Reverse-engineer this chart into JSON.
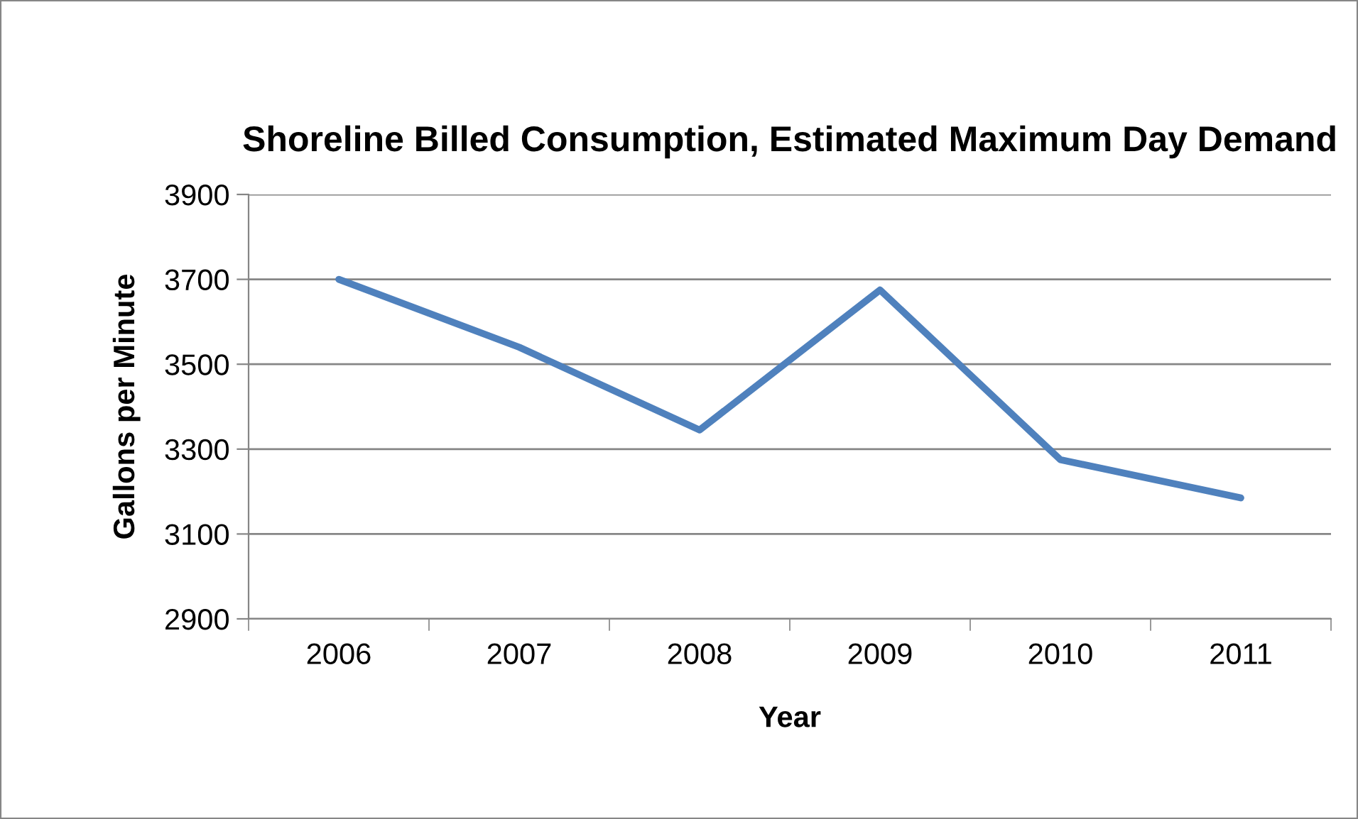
{
  "chart_data": {
    "type": "line",
    "title": "Shoreline Billed Consumption, Estimated Maximum Day Demand",
    "xlabel": "Year",
    "ylabel": "Gallons per Minute",
    "categories": [
      "2006",
      "2007",
      "2008",
      "2009",
      "2010",
      "2011"
    ],
    "series": [
      {
        "color": "#4f81bd",
        "values": [
          3700,
          3540,
          3345,
          3675,
          3275,
          3185
        ]
      }
    ],
    "ylim": [
      2900,
      3900
    ],
    "yticks": [
      2900,
      3100,
      3300,
      3500,
      3700,
      3900
    ],
    "grid": "y",
    "legend": false,
    "marker": "none",
    "line_style": "solid"
  }
}
